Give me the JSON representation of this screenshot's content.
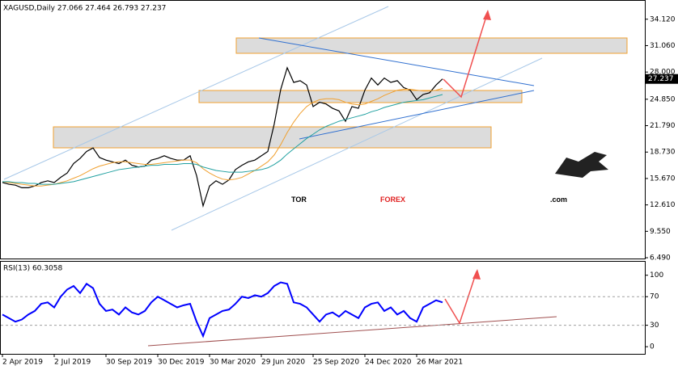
{
  "chart_data": [
    {
      "type": "line",
      "title": "XAGUSD,Daily  27.066 27.464 26.793 27.237",
      "last_price_label": "27.237",
      "watermark": {
        "part1": "TOR",
        "part2": "FOREX",
        "part3": ".com"
      },
      "x": [
        "2 Apr 2019",
        null,
        null,
        null,
        null,
        null,
        null,
        null,
        "2 Jul 2019",
        null,
        null,
        null,
        null,
        null,
        null,
        null,
        "30 Sep 2019",
        null,
        null,
        null,
        null,
        null,
        null,
        null,
        "30 Dec 2019",
        null,
        null,
        null,
        null,
        null,
        null,
        null,
        "30 Mar 2020",
        null,
        null,
        null,
        null,
        null,
        null,
        null,
        "29 Jun 2020",
        null,
        null,
        null,
        null,
        null,
        null,
        null,
        "25 Sep 2020",
        null,
        null,
        null,
        null,
        null,
        null,
        null,
        "24 Dec 2020",
        null,
        null,
        null,
        null,
        null,
        null,
        null,
        "26 Mar 2021",
        null,
        null,
        null,
        null
      ],
      "series": [
        {
          "color": "#000000",
          "values": [
            15.2,
            15.0,
            14.9,
            14.6,
            14.6,
            14.8,
            15.2,
            15.4,
            15.2,
            15.8,
            16.3,
            17.4,
            18.0,
            18.8,
            19.2,
            18.1,
            17.8,
            17.6,
            17.4,
            17.8,
            17.2,
            17.0,
            17.1,
            17.8,
            18.0,
            18.3,
            18.0,
            17.8,
            17.8,
            18.3,
            16.0,
            12.5,
            14.8,
            15.4,
            15.0,
            15.5,
            16.7,
            17.2,
            17.6,
            17.8,
            18.3,
            18.8,
            22.0,
            26.0,
            28.5,
            26.8,
            27.0,
            26.5,
            24.0,
            24.5,
            24.3,
            23.8,
            23.5,
            22.3,
            24.0,
            23.8,
            25.9,
            27.3,
            26.5,
            27.3,
            26.8,
            27.0,
            26.2,
            25.9,
            24.8,
            25.4,
            25.6,
            26.5,
            27.2
          ]
        },
        {
          "color": "#f0a030",
          "values": [
            15.3,
            15.2,
            15.1,
            15.0,
            14.9,
            14.8,
            14.8,
            14.9,
            15.0,
            15.2,
            15.4,
            15.7,
            16.0,
            16.4,
            16.8,
            17.1,
            17.3,
            17.5,
            17.6,
            17.6,
            17.5,
            17.4,
            17.3,
            17.3,
            17.4,
            17.5,
            17.6,
            17.7,
            17.8,
            17.8,
            17.5,
            16.8,
            16.3,
            15.9,
            15.6,
            15.5,
            15.6,
            15.8,
            16.2,
            16.6,
            17.1,
            17.6,
            18.4,
            19.6,
            21.0,
            22.2,
            23.2,
            24.0,
            24.5,
            24.8,
            24.9,
            24.9,
            24.8,
            24.5,
            24.3,
            24.2,
            24.3,
            24.6,
            24.9,
            25.3,
            25.6,
            25.9,
            26.0,
            26.0,
            25.9,
            25.8,
            25.8,
            25.9,
            26.1
          ]
        },
        {
          "color": "#20a0a0",
          "values": [
            15.3,
            15.3,
            15.2,
            15.2,
            15.1,
            15.1,
            15.0,
            15.0,
            15.0,
            15.1,
            15.2,
            15.3,
            15.5,
            15.7,
            15.9,
            16.1,
            16.3,
            16.5,
            16.7,
            16.8,
            16.9,
            17.0,
            17.1,
            17.2,
            17.2,
            17.3,
            17.3,
            17.3,
            17.4,
            17.4,
            17.3,
            17.0,
            16.8,
            16.6,
            16.5,
            16.4,
            16.4,
            16.4,
            16.5,
            16.6,
            16.7,
            16.9,
            17.3,
            17.8,
            18.5,
            19.1,
            19.7,
            20.3,
            20.8,
            21.3,
            21.7,
            22.0,
            22.3,
            22.5,
            22.7,
            22.9,
            23.1,
            23.4,
            23.6,
            23.9,
            24.1,
            24.3,
            24.5,
            24.6,
            24.7,
            24.8,
            25.0,
            25.2,
            25.4
          ]
        }
      ],
      "ylim": [
        6.4,
        35.97
      ],
      "yticks": [
        {
          "value": 34.12,
          "label": "34.120"
        },
        {
          "value": 31.06,
          "label": "31.060"
        },
        {
          "value": 28.0,
          "label": "28.000"
        },
        {
          "value": 24.85,
          "label": "24.850"
        },
        {
          "value": 21.79,
          "label": "21.790"
        },
        {
          "value": 18.73,
          "label": "18.730"
        },
        {
          "value": 15.67,
          "label": "15.670"
        },
        {
          "value": 12.61,
          "label": "12.610"
        },
        {
          "value": 9.55,
          "label": "9.550"
        },
        {
          "value": 6.49,
          "label": "6.490"
        }
      ]
    },
    {
      "type": "line",
      "title": "RSI(13) 60.3058",
      "series": [
        {
          "color": "#0000ff",
          "values": [
            45,
            40,
            35,
            38,
            45,
            50,
            60,
            62,
            55,
            70,
            80,
            85,
            75,
            88,
            82,
            60,
            50,
            52,
            45,
            55,
            48,
            45,
            50,
            62,
            70,
            65,
            60,
            55,
            58,
            60,
            35,
            15,
            40,
            45,
            50,
            52,
            60,
            70,
            68,
            72,
            70,
            75,
            85,
            90,
            88,
            62,
            60,
            55,
            45,
            35,
            45,
            48,
            42,
            50,
            45,
            40,
            55,
            60,
            62,
            50,
            55,
            45,
            50,
            40,
            35,
            55,
            60,
            65,
            62
          ]
        }
      ],
      "ylim": [
        -10,
        120
      ],
      "yticks": [
        100,
        70,
        30,
        0
      ],
      "level_lines": [
        70,
        30
      ]
    }
  ]
}
